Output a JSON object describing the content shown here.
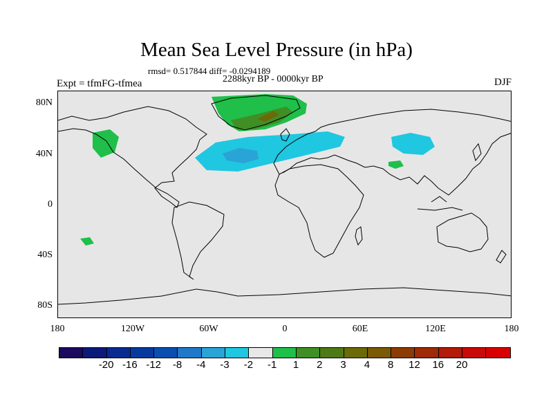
{
  "title": "Mean Sea Level Pressure (in hPa)",
  "subtitle": "rmsd= 0.517844 diff= -0.0294189",
  "period": "2288kyr BP - 0000kyr BP",
  "left_label": "Expt = tfmFG-tfmea",
  "right_label": "DJF",
  "lat_labels": [
    "80N",
    "40N",
    "0",
    "40S",
    "80S"
  ],
  "lon_labels": [
    "180",
    "120W",
    "60W",
    "0",
    "60E",
    "120E",
    "180"
  ],
  "colorbar": {
    "colors": [
      "#1b0a5e",
      "#0c1a7a",
      "#0a2a8f",
      "#08399e",
      "#0a4fb0",
      "#1f79c8",
      "#2aa3d6",
      "#1fc7e0",
      "#e8e8e8",
      "#1fbf4a",
      "#3f8f25",
      "#4e7a16",
      "#6b6a08",
      "#7a5a06",
      "#8c3b05",
      "#9e2a06",
      "#b21a0a",
      "#c80a0a",
      "#d80000"
    ],
    "labels": [
      "-20",
      "-16",
      "-12",
      "-8",
      "-4",
      "-3",
      "-2",
      "-1",
      "1",
      "2",
      "3",
      "4",
      "8",
      "12",
      "16",
      "20"
    ]
  },
  "colors": {
    "land_outline": "#000000",
    "map_background": "#e6e6e6"
  }
}
